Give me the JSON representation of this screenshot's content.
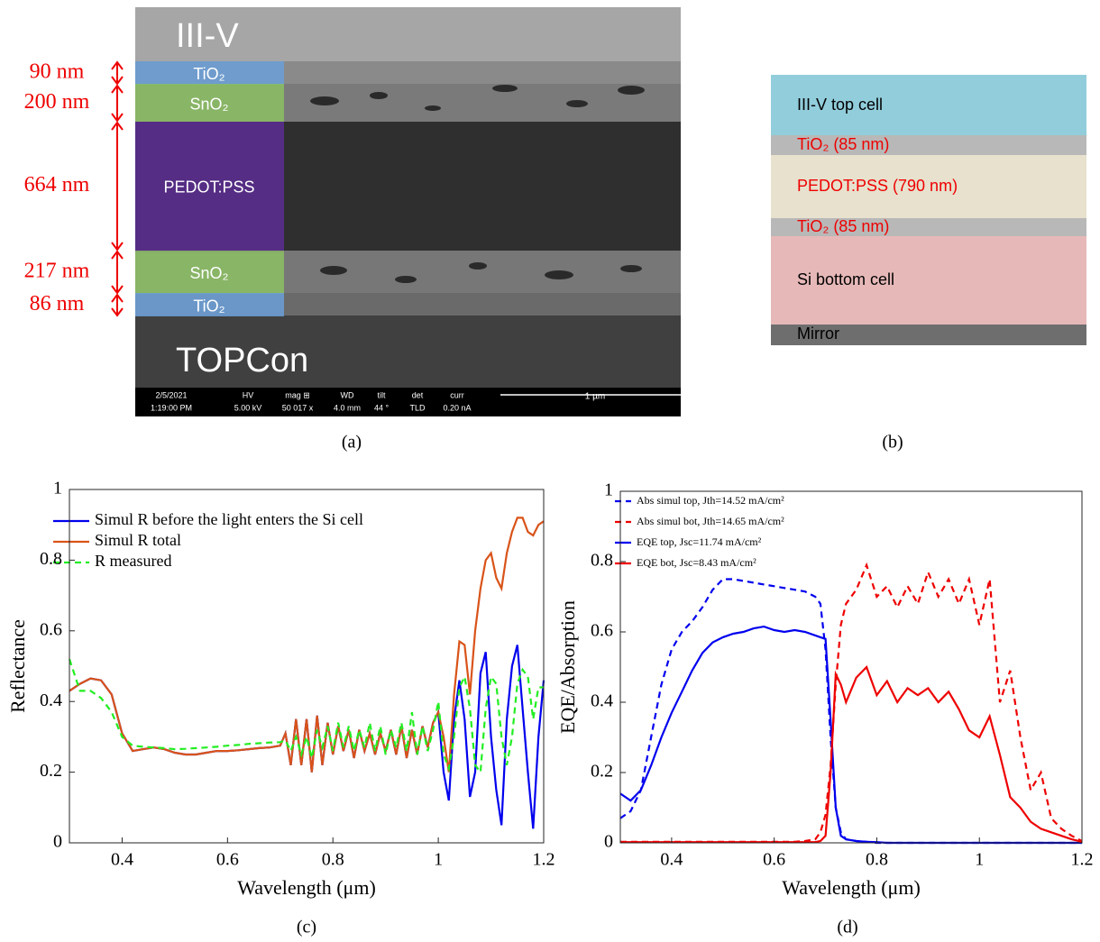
{
  "panel_a": {
    "label": "(a)",
    "top_label": "III-V",
    "bottom_label": "TOPCon",
    "layers": [
      {
        "name": "TiO₂",
        "thickness": "90 nm"
      },
      {
        "name": "SnO₂",
        "thickness": "200 nm"
      },
      {
        "name": "PEDOT:PSS",
        "thickness": "664 nm"
      },
      {
        "name": "SnO₂",
        "thickness": "217 nm"
      },
      {
        "name": "TiO₂",
        "thickness": "86 nm"
      }
    ],
    "info_bar": [
      "2/5/2021",
      "1:19:00 PM",
      "HV",
      "5.00 kV",
      "mag ⊞",
      "50 017 x",
      "WD",
      "4.0 mm",
      "tilt",
      "44 °",
      "det",
      "TLD",
      "curr",
      "0.20 nA"
    ],
    "scale_bar": "1 µm"
  },
  "panel_b": {
    "label": "(b)",
    "layers": [
      "III-V top cell",
      "TiO₂ (85 nm)",
      "PEDOT:PSS (790 nm)",
      "TiO₂ (85 nm)",
      "Si bottom cell",
      "Mirror"
    ]
  },
  "chart_data": [
    {
      "type": "line",
      "label": "(c)",
      "xlabel": "Wavelength (μm)",
      "ylabel": "Reflectance",
      "xlim": [
        0.3,
        1.2
      ],
      "ylim": [
        0,
        1
      ],
      "xticks": [
        0.4,
        0.6,
        0.8,
        1,
        1.2
      ],
      "yticks": [
        0,
        0.2,
        0.4,
        0.6,
        0.8,
        1
      ],
      "x": [
        0.3,
        0.32,
        0.34,
        0.36,
        0.38,
        0.4,
        0.42,
        0.44,
        0.46,
        0.48,
        0.5,
        0.52,
        0.54,
        0.56,
        0.58,
        0.6,
        0.62,
        0.64,
        0.66,
        0.68,
        0.7,
        0.71,
        0.72,
        0.73,
        0.74,
        0.75,
        0.76,
        0.77,
        0.78,
        0.79,
        0.8,
        0.81,
        0.82,
        0.83,
        0.84,
        0.85,
        0.86,
        0.87,
        0.88,
        0.89,
        0.9,
        0.91,
        0.92,
        0.93,
        0.94,
        0.95,
        0.96,
        0.97,
        0.98,
        0.99,
        1.0,
        1.01,
        1.02,
        1.03,
        1.04,
        1.05,
        1.06,
        1.07,
        1.08,
        1.09,
        1.1,
        1.11,
        1.12,
        1.13,
        1.14,
        1.15,
        1.16,
        1.17,
        1.18,
        1.19,
        1.2
      ],
      "series": [
        {
          "name": "Simul R before the light enters the Si cell",
          "color": "#0000ee",
          "dash": false,
          "values": [
            0.43,
            0.45,
            0.465,
            0.46,
            0.42,
            0.31,
            0.26,
            0.265,
            0.27,
            0.265,
            0.255,
            0.25,
            0.25,
            0.255,
            0.26,
            0.26,
            0.262,
            0.265,
            0.268,
            0.27,
            0.275,
            0.31,
            0.22,
            0.35,
            0.22,
            0.35,
            0.2,
            0.36,
            0.22,
            0.34,
            0.25,
            0.33,
            0.26,
            0.32,
            0.24,
            0.32,
            0.26,
            0.31,
            0.25,
            0.31,
            0.26,
            0.32,
            0.25,
            0.33,
            0.24,
            0.32,
            0.25,
            0.33,
            0.27,
            0.34,
            0.37,
            0.2,
            0.12,
            0.35,
            0.46,
            0.35,
            0.13,
            0.2,
            0.48,
            0.54,
            0.3,
            0.15,
            0.05,
            0.35,
            0.5,
            0.56,
            0.38,
            0.2,
            0.04,
            0.3,
            0.46
          ]
        },
        {
          "name": "Simul R total",
          "color": "#d95319",
          "dash": false,
          "values": [
            0.43,
            0.45,
            0.465,
            0.46,
            0.42,
            0.31,
            0.26,
            0.265,
            0.27,
            0.265,
            0.255,
            0.25,
            0.25,
            0.255,
            0.26,
            0.26,
            0.262,
            0.265,
            0.268,
            0.27,
            0.275,
            0.31,
            0.22,
            0.35,
            0.22,
            0.35,
            0.2,
            0.36,
            0.22,
            0.34,
            0.25,
            0.33,
            0.26,
            0.32,
            0.24,
            0.32,
            0.26,
            0.31,
            0.25,
            0.31,
            0.26,
            0.32,
            0.25,
            0.33,
            0.24,
            0.32,
            0.25,
            0.33,
            0.27,
            0.34,
            0.37,
            0.3,
            0.2,
            0.42,
            0.57,
            0.56,
            0.42,
            0.6,
            0.72,
            0.8,
            0.82,
            0.75,
            0.72,
            0.82,
            0.88,
            0.92,
            0.92,
            0.88,
            0.87,
            0.9,
            0.91
          ]
        },
        {
          "name": "R measured",
          "color": "#22ee22",
          "dash": true,
          "values": [
            0.52,
            0.43,
            0.43,
            0.41,
            0.37,
            0.3,
            0.275,
            0.272,
            0.27,
            0.268,
            0.265,
            0.266,
            0.268,
            0.27,
            0.272,
            0.275,
            0.277,
            0.28,
            0.282,
            0.284,
            0.285,
            0.29,
            0.26,
            0.3,
            0.25,
            0.3,
            0.24,
            0.32,
            0.27,
            0.33,
            0.26,
            0.34,
            0.27,
            0.33,
            0.26,
            0.32,
            0.27,
            0.34,
            0.26,
            0.33,
            0.25,
            0.32,
            0.27,
            0.34,
            0.26,
            0.37,
            0.25,
            0.33,
            0.26,
            0.32,
            0.4,
            0.25,
            0.21,
            0.3,
            0.44,
            0.47,
            0.38,
            0.22,
            0.2,
            0.38,
            0.47,
            0.45,
            0.3,
            0.22,
            0.3,
            0.45,
            0.49,
            0.47,
            0.35,
            0.44,
            0.44
          ]
        }
      ]
    },
    {
      "type": "line",
      "label": "(d)",
      "xlabel": "Wavelength (μm)",
      "ylabel": "EQE/Absorption",
      "xlim": [
        0.3,
        1.2
      ],
      "ylim": [
        0,
        1
      ],
      "xticks": [
        0.4,
        0.6,
        0.8,
        1,
        1.2
      ],
      "yticks": [
        0,
        0.2,
        0.4,
        0.6,
        0.8,
        1
      ],
      "x": [
        0.3,
        0.32,
        0.34,
        0.36,
        0.38,
        0.4,
        0.42,
        0.44,
        0.46,
        0.48,
        0.5,
        0.52,
        0.54,
        0.56,
        0.58,
        0.6,
        0.62,
        0.64,
        0.66,
        0.68,
        0.69,
        0.7,
        0.71,
        0.72,
        0.73,
        0.74,
        0.76,
        0.78,
        0.8,
        0.82,
        0.84,
        0.86,
        0.88,
        0.9,
        0.92,
        0.94,
        0.96,
        0.98,
        1.0,
        1.02,
        1.04,
        1.06,
        1.08,
        1.1,
        1.12,
        1.14,
        1.16,
        1.18,
        1.2
      ],
      "series": [
        {
          "name": "Abs simul top, Jth=14.52 mA/cm²",
          "color": "#0000ee",
          "dash": true,
          "values": [
            0.07,
            0.09,
            0.15,
            0.3,
            0.45,
            0.55,
            0.6,
            0.63,
            0.67,
            0.72,
            0.75,
            0.75,
            0.745,
            0.74,
            0.735,
            0.73,
            0.725,
            0.72,
            0.715,
            0.7,
            0.68,
            0.55,
            0.3,
            0.1,
            0.03,
            0.01,
            0.005,
            0.003,
            0,
            0,
            0,
            0,
            0,
            0,
            0,
            0,
            0,
            0,
            0,
            0,
            0,
            0,
            0,
            0,
            0,
            0,
            0,
            0,
            0
          ]
        },
        {
          "name": "Abs simul bot, Jth=14.65 mA/cm²",
          "color": "#ee0000",
          "dash": true,
          "values": [
            0.003,
            0.003,
            0.003,
            0.003,
            0.003,
            0.003,
            0.003,
            0.003,
            0.003,
            0.003,
            0.003,
            0.003,
            0.003,
            0.003,
            0.003,
            0.003,
            0.003,
            0.003,
            0.005,
            0.01,
            0.03,
            0.08,
            0.22,
            0.45,
            0.62,
            0.68,
            0.72,
            0.79,
            0.7,
            0.73,
            0.67,
            0.73,
            0.68,
            0.77,
            0.7,
            0.75,
            0.68,
            0.75,
            0.62,
            0.75,
            0.4,
            0.49,
            0.3,
            0.15,
            0.2,
            0.07,
            0.04,
            0.02,
            0.005
          ]
        },
        {
          "name": "EQE top, Jsc=11.74 mA/cm²",
          "color": "#0000ee",
          "dash": false,
          "values": [
            0.14,
            0.12,
            0.15,
            0.22,
            0.3,
            0.37,
            0.43,
            0.49,
            0.54,
            0.57,
            0.585,
            0.595,
            0.6,
            0.61,
            0.615,
            0.605,
            0.6,
            0.605,
            0.6,
            0.59,
            0.585,
            0.58,
            0.35,
            0.1,
            0.02,
            0.01,
            0.005,
            0.003,
            0.002,
            0,
            0,
            0,
            0,
            0,
            0,
            0,
            0,
            0,
            0,
            0,
            0,
            0,
            0,
            0,
            0,
            0,
            0,
            0,
            0
          ]
        },
        {
          "name": "EQE bot, Jsc=8.43 mA/cm²",
          "color": "#ee0000",
          "dash": false,
          "values": [
            0.002,
            0.002,
            0.002,
            0.002,
            0.002,
            0.002,
            0.002,
            0.002,
            0.002,
            0.002,
            0.002,
            0.002,
            0.002,
            0.002,
            0.002,
            0.002,
            0.002,
            0.002,
            0.002,
            0.002,
            0.005,
            0.02,
            0.2,
            0.48,
            0.45,
            0.4,
            0.47,
            0.5,
            0.42,
            0.46,
            0.4,
            0.44,
            0.42,
            0.44,
            0.4,
            0.43,
            0.38,
            0.32,
            0.3,
            0.36,
            0.25,
            0.13,
            0.1,
            0.06,
            0.04,
            0.03,
            0.02,
            0.01,
            0.003
          ]
        }
      ]
    }
  ]
}
